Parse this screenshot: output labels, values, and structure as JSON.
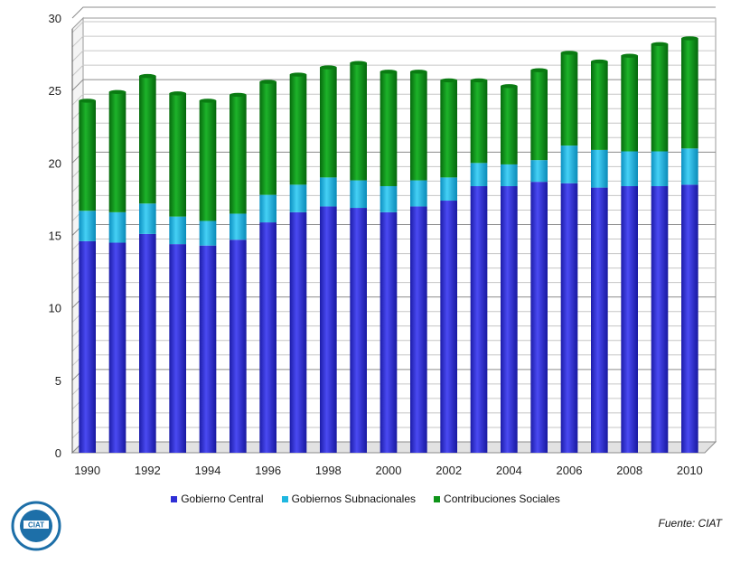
{
  "chart_data": {
    "type": "bar",
    "stacked": true,
    "ylim": [
      0,
      30
    ],
    "yticks": [
      0,
      5,
      10,
      15,
      20,
      25,
      30
    ],
    "grid": true,
    "legend_position": "bottom",
    "categories": [
      "1990",
      "1991",
      "1992",
      "1993",
      "1994",
      "1995",
      "1996",
      "1997",
      "1998",
      "1999",
      "2000",
      "2001",
      "2002",
      "2003",
      "2004",
      "2005",
      "2006",
      "2007",
      "2008",
      "2009",
      "2010"
    ],
    "xtick_labels": [
      "1990",
      "1992",
      "1994",
      "1996",
      "1998",
      "2000",
      "2002",
      "2004",
      "2006",
      "2008",
      "2010"
    ],
    "series": [
      {
        "name": "Gobierno Central",
        "color": "#2f2fd6",
        "values": [
          14.6,
          14.5,
          15.1,
          14.4,
          14.3,
          14.7,
          15.9,
          16.6,
          17.0,
          16.9,
          16.6,
          17.0,
          17.4,
          18.4,
          18.4,
          18.7,
          18.6,
          18.3,
          18.4,
          18.4,
          18.5
        ]
      },
      {
        "name": "Gobiernos Subnacionales",
        "color": "#1fb7e0",
        "values": [
          2.1,
          2.1,
          2.1,
          1.9,
          1.7,
          1.8,
          1.9,
          1.9,
          2.0,
          1.9,
          1.8,
          1.8,
          1.6,
          1.6,
          1.5,
          1.5,
          2.6,
          2.6,
          2.4,
          2.4,
          2.5
        ]
      },
      {
        "name": "Contribuciones Sociales",
        "color": "#0e9419",
        "values": [
          7.6,
          8.3,
          8.8,
          8.5,
          8.3,
          8.2,
          7.8,
          7.6,
          7.6,
          8.1,
          7.9,
          7.5,
          6.7,
          5.7,
          5.4,
          6.2,
          6.4,
          6.1,
          6.6,
          7.4,
          7.6
        ]
      }
    ]
  },
  "source": "Fuente: CIAT",
  "logo": {
    "text": "CIAT",
    "color": "#1d6fa8"
  }
}
